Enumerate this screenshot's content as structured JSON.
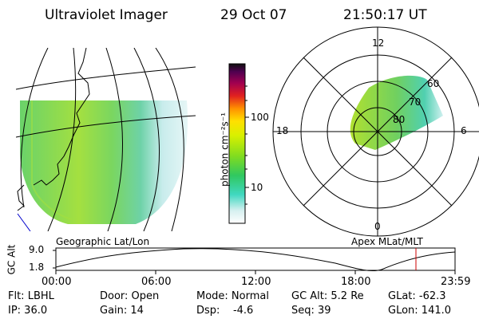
{
  "header": {
    "instrument": "Ultraviolet Imager",
    "date": "29 Oct 07",
    "time": "21:50:17 UT"
  },
  "colorbar": {
    "label": "photon cm⁻²s⁻¹",
    "ticks": [
      "100",
      "10"
    ],
    "scale": "log"
  },
  "left_panel": {
    "label": "Geographic Lat/Lon"
  },
  "right_panel": {
    "label": "Apex MLat/MLT",
    "mlt_labels": {
      "top": "12",
      "left": "18",
      "right": "6",
      "bottom": "0"
    },
    "lat_labels": [
      "60",
      "70",
      "80"
    ]
  },
  "altitude_plot": {
    "ylabel": "GC Alt",
    "ytick_top": "9.0",
    "ytick_bottom": "1.8",
    "xticks": [
      "00:00",
      "06:00",
      "12:00",
      "18:00",
      "23:59"
    ]
  },
  "status": {
    "row1": {
      "flt": "Flt: LBHL",
      "door": "Door: Open",
      "mode": "Mode: Normal",
      "gcalt": "GC Alt: 5.2 Re",
      "glat": "GLat: -62.3"
    },
    "row2": {
      "ip": "IP: 36.0",
      "gain": "Gain: 14",
      "dsp": "Dsp:    -4.6",
      "seq": "Seq: 39",
      "glon": "GLon: 141.0"
    }
  },
  "colors": {
    "lines": "#000000",
    "marker": "#cc0000",
    "coast": "#0000cc"
  }
}
